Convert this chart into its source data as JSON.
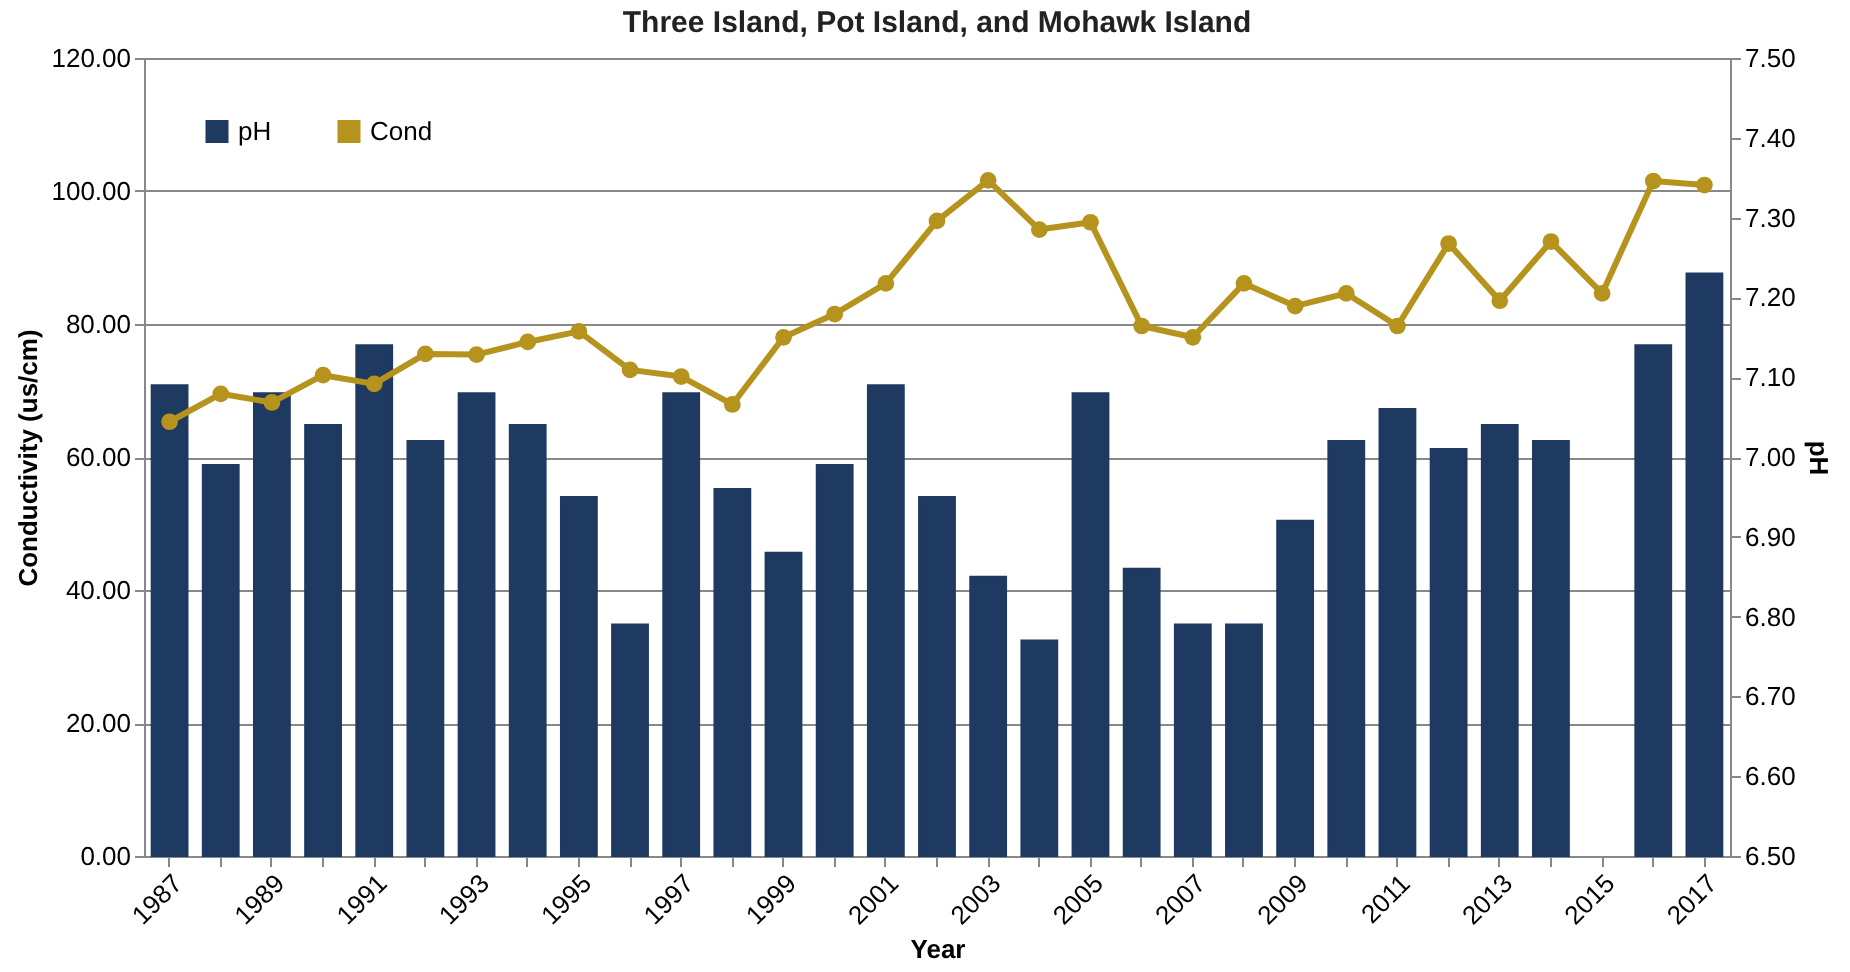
{
  "chart_data": {
    "type": "bar",
    "title": "Three Island, Pot Island, and Mohawk Island",
    "xlabel": "Year",
    "ylabel": "Conductivity (us/cm)",
    "y2label": "pH",
    "categories": [
      "1987",
      null,
      "1989",
      null,
      "1991",
      null,
      "1993",
      null,
      "1995",
      null,
      "1997",
      null,
      "1999",
      null,
      "2001",
      null,
      "2003",
      null,
      "2005",
      null,
      "2007",
      null,
      "2009",
      null,
      "2011",
      null,
      "2013",
      null,
      "2015",
      null,
      "2017"
    ],
    "series": [
      {
        "name": "pH",
        "axis": "y2",
        "color": "#1f3a60",
        "values": [
          7.09,
          6.99,
          7.08,
          7.04,
          7.14,
          7.02,
          7.08,
          7.04,
          6.95,
          6.79,
          7.08,
          6.96,
          6.88,
          6.99,
          7.09,
          6.95,
          6.85,
          6.77,
          7.08,
          6.86,
          6.79,
          6.79,
          6.92,
          7.02,
          7.06,
          7.01,
          7.04,
          7.02,
          null,
          7.14,
          7.23
        ]
      },
      {
        "name": "Cond",
        "type": "line",
        "color": "#b5931c",
        "values": [
          65.3,
          69.5,
          68.2,
          72.3,
          71,
          75.5,
          75.4,
          77.3,
          78.9,
          73.1,
          72.1,
          67.9,
          78,
          81.5,
          86.1,
          95.5,
          101.6,
          94.2,
          95.3,
          79.7,
          78,
          86.1,
          82.7,
          84.6,
          79.7,
          92.1,
          83.5,
          92.4,
          84.6,
          101.5,
          100.9
        ]
      }
    ],
    "ylim": [
      0,
      120
    ],
    "yticks": [
      {
        "value": 0,
        "label": "0.00"
      },
      {
        "value": 20,
        "label": "20.00"
      },
      {
        "value": 40,
        "label": "40.00"
      },
      {
        "value": 60,
        "label": "60.00"
      },
      {
        "value": 80,
        "label": "80.00"
      },
      {
        "value": 100,
        "label": "100.00"
      },
      {
        "value": 120,
        "label": "120.00"
      }
    ],
    "y2lim": [
      6.5,
      7.5
    ],
    "y2ticks": [
      {
        "value": 6.5,
        "label": "6.50"
      },
      {
        "value": 6.6,
        "label": "6.60"
      },
      {
        "value": 6.7,
        "label": "6.70"
      },
      {
        "value": 6.8,
        "label": "6.80"
      },
      {
        "value": 6.9,
        "label": "6.90"
      },
      {
        "value": 7,
        "label": "7.00"
      },
      {
        "value": 7.1,
        "label": "7.10"
      },
      {
        "value": 7.2,
        "label": "7.20"
      },
      {
        "value": 7.3,
        "label": "7.30"
      },
      {
        "value": 7.4,
        "label": "7.40"
      },
      {
        "value": 7.5,
        "label": "7.50"
      }
    ],
    "grid": "y",
    "legend": "top left",
    "marker": "circle",
    "line_style": "solid"
  }
}
